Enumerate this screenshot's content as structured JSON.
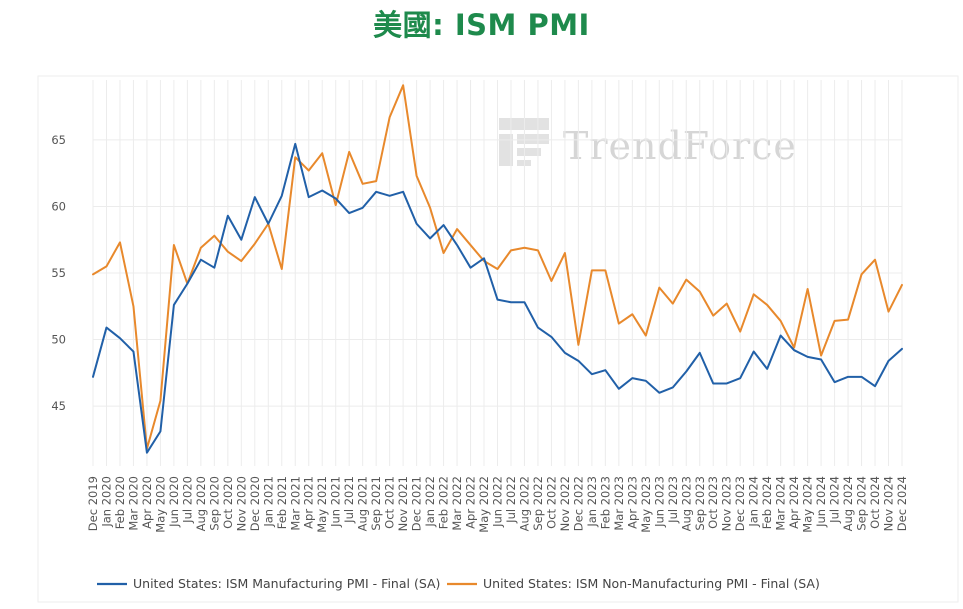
{
  "page": {
    "title": "美國: ISM PMI"
  },
  "watermark": {
    "text": "TrendForce",
    "icon": "trendforce-logo-icon"
  },
  "colors": {
    "manufacturing": "#2160a8",
    "non_manufacturing": "#e8892c",
    "title": "#1e8a4c",
    "grid": "#ececec"
  },
  "chart_data": {
    "type": "line",
    "title": "美國: ISM PMI",
    "xlabel": "",
    "ylabel": "",
    "ylim": [
      40.5,
      69.5
    ],
    "yticks": [
      45,
      50,
      55,
      60,
      65
    ],
    "grid": true,
    "legend_position": "bottom",
    "x": [
      "Dec 2019",
      "Jan 2020",
      "Feb 2020",
      "Mar 2020",
      "Apr 2020",
      "May 2020",
      "Jun 2020",
      "Jul 2020",
      "Aug 2020",
      "Sep 2020",
      "Oct 2020",
      "Nov 2020",
      "Dec 2020",
      "Jan 2021",
      "Feb 2021",
      "Mar 2021",
      "Apr 2021",
      "May 2021",
      "Jun 2021",
      "Jul 2021",
      "Aug 2021",
      "Sep 2021",
      "Oct 2021",
      "Nov 2021",
      "Dec 2021",
      "Jan 2022",
      "Feb 2022",
      "Mar 2022",
      "Apr 2022",
      "May 2022",
      "Jun 2022",
      "Jul 2022",
      "Aug 2022",
      "Sep 2022",
      "Oct 2022",
      "Nov 2022",
      "Dec 2022",
      "Jan 2023",
      "Feb 2023",
      "Mar 2023",
      "Apr 2023",
      "May 2023",
      "Jun 2023",
      "Jul 2023",
      "Aug 2023",
      "Sep 2023",
      "Oct 2023",
      "Nov 2023",
      "Dec 2023",
      "Jan 2024",
      "Feb 2024",
      "Mar 2024",
      "Apr 2024",
      "May 2024",
      "Jun 2024",
      "Jul 2024",
      "Aug 2024",
      "Sep 2024",
      "Oct 2024",
      "Nov 2024",
      "Dec 2024"
    ],
    "series": [
      {
        "name": "United States: ISM Manufacturing PMI - Final (SA)",
        "values": [
          47.2,
          50.9,
          50.1,
          49.1,
          41.5,
          43.1,
          52.6,
          54.2,
          56.0,
          55.4,
          59.3,
          57.5,
          60.7,
          58.7,
          60.8,
          64.7,
          60.7,
          61.2,
          60.6,
          59.5,
          59.9,
          61.1,
          60.8,
          61.1,
          58.7,
          57.6,
          58.6,
          57.1,
          55.4,
          56.1,
          53.0,
          52.8,
          52.8,
          50.9,
          50.2,
          49.0,
          48.4,
          47.4,
          47.7,
          46.3,
          47.1,
          46.9,
          46.0,
          46.4,
          47.6,
          49.0,
          46.7,
          46.7,
          47.1,
          49.1,
          47.8,
          50.3,
          49.2,
          48.7,
          48.5,
          46.8,
          47.2,
          47.2,
          46.5,
          48.4,
          49.3
        ]
      },
      {
        "name": "United States: ISM Non-Manufacturing PMI - Final (SA)",
        "values": [
          54.9,
          55.5,
          57.3,
          52.5,
          41.8,
          45.4,
          57.1,
          54.2,
          56.9,
          57.8,
          56.6,
          55.9,
          57.2,
          58.7,
          55.3,
          63.7,
          62.7,
          64.0,
          60.1,
          64.1,
          61.7,
          61.9,
          66.7,
          69.1,
          62.3,
          59.9,
          56.5,
          58.3,
          57.1,
          55.9,
          55.3,
          56.7,
          56.9,
          56.7,
          54.4,
          56.5,
          49.6,
          55.2,
          55.2,
          51.2,
          51.9,
          50.3,
          53.9,
          52.7,
          54.5,
          53.6,
          51.8,
          52.7,
          50.6,
          53.4,
          52.6,
          51.4,
          49.4,
          53.8,
          48.8,
          51.4,
          51.5,
          54.9,
          56.0,
          52.1,
          54.1
        ]
      }
    ]
  },
  "legend": {
    "items": [
      {
        "label": "United States: ISM Manufacturing PMI - Final (SA)",
        "color": "#2160a8"
      },
      {
        "label": "United States: ISM Non-Manufacturing PMI - Final (SA)",
        "color": "#e8892c"
      }
    ]
  }
}
